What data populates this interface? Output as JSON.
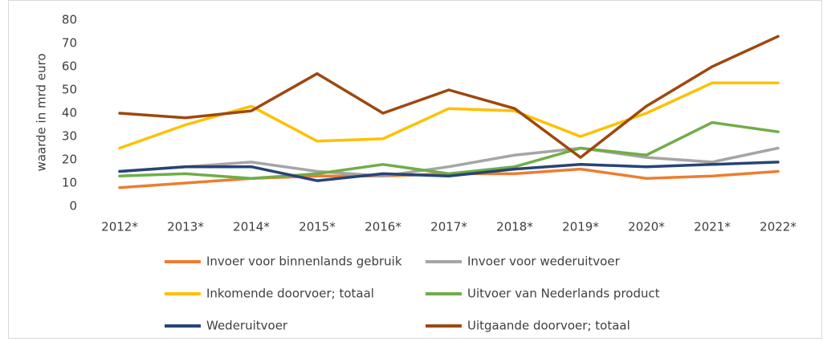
{
  "chart_data": {
    "type": "line",
    "ylabel": "waarde in mrd euro",
    "categories": [
      "2012*",
      "2013*",
      "2014*",
      "2015*",
      "2016*",
      "2017*",
      "2018*",
      "2019*",
      "2020*",
      "2021*",
      "2022*"
    ],
    "ylim": [
      0,
      80
    ],
    "yticks": [
      0,
      10,
      20,
      30,
      40,
      50,
      60,
      70,
      80
    ],
    "grid": false,
    "legend": "bottom",
    "series": [
      {
        "name": "Invoer voor binnenlands gebruik",
        "color": "#ed7d31",
        "values": [
          8,
          10,
          12,
          13,
          13,
          14,
          14,
          16,
          12,
          13,
          15
        ]
      },
      {
        "name": "Invoer voor wederuitvoer",
        "color": "#a5a5a5",
        "values": [
          15,
          17,
          19,
          15,
          13,
          17,
          22,
          25,
          21,
          19,
          25
        ]
      },
      {
        "name": "Inkomende doorvoer; totaal",
        "color": "#ffc000",
        "values": [
          25,
          35,
          43,
          28,
          29,
          42,
          41,
          30,
          40,
          53,
          53
        ]
      },
      {
        "name": "Uitvoer van Nederlands product",
        "color": "#70ad47",
        "values": [
          13,
          14,
          12,
          14,
          18,
          14,
          17,
          25,
          22,
          36,
          32
        ]
      },
      {
        "name": "Wederuitvoer",
        "color": "#264478",
        "values": [
          15,
          17,
          17,
          11,
          14,
          13,
          16,
          18,
          17,
          18,
          19
        ]
      },
      {
        "name": "Uitgaande doorvoer; totaal",
        "color": "#9e480e",
        "values": [
          40,
          38,
          41,
          57,
          40,
          50,
          42,
          21,
          43,
          60,
          73
        ]
      }
    ]
  }
}
